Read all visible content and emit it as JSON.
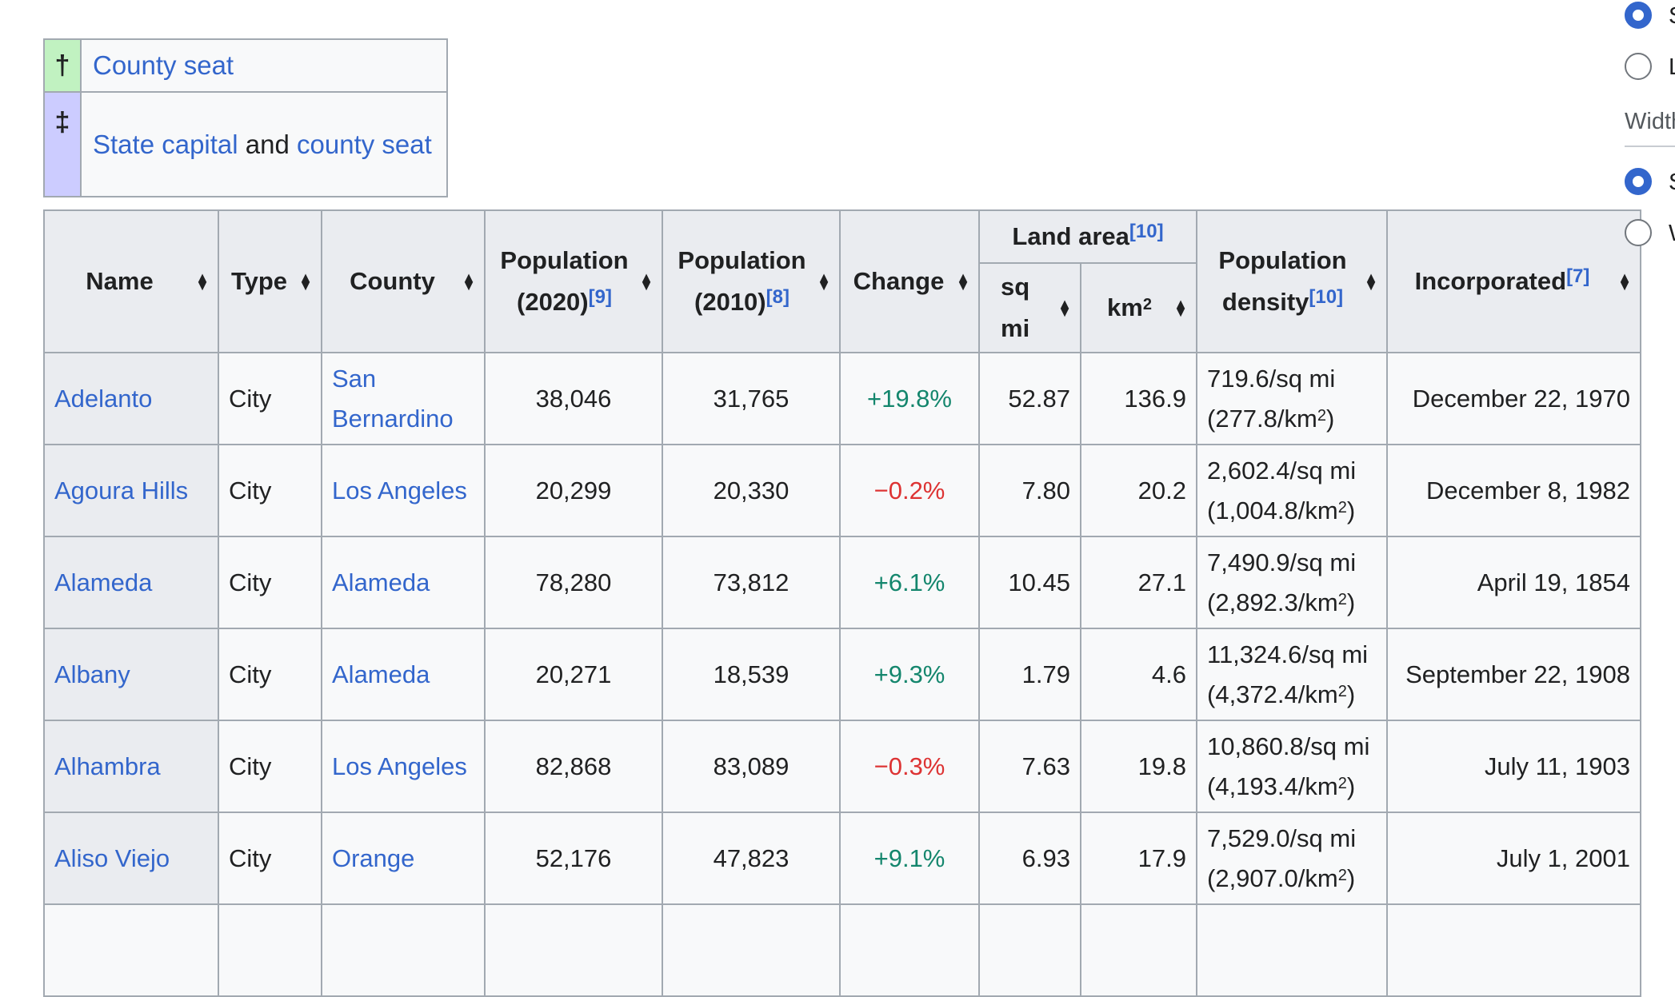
{
  "legend": [
    {
      "symbol": "†",
      "color": "#c1f2c1",
      "parts": [
        {
          "text": "County seat",
          "link": true
        }
      ]
    },
    {
      "symbol": "‡",
      "color": "#ccccff",
      "parts": [
        {
          "text": "State capital",
          "link": true
        },
        {
          "text": " and ",
          "link": false
        },
        {
          "text": "county seat",
          "link": true
        }
      ]
    }
  ],
  "table": {
    "headers": {
      "name": "Name",
      "type": "Type",
      "county": "County",
      "pop2020": {
        "line1": "Population",
        "line2": "(2020)",
        "ref": "[9]"
      },
      "pop2010": {
        "line1": "Population",
        "line2": "(2010)",
        "ref": "[8]"
      },
      "change": "Change",
      "land_area": {
        "label": "Land area",
        "ref": "[10]"
      },
      "sqmi": {
        "line1": "sq",
        "line2": "mi"
      },
      "km2": {
        "label": "km",
        "sup": "2"
      },
      "density": {
        "line1": "Population",
        "line2": "density",
        "ref": "[10]"
      },
      "incorporated": {
        "label": "Incorporated",
        "ref": "[7]"
      }
    },
    "rows": [
      {
        "name": "Adelanto",
        "type": "City",
        "county": [
          "San",
          "Bernardino"
        ],
        "pop2020": "38,046",
        "pop2010": "31,765",
        "change": "+19.8%",
        "change_sign": "pos",
        "sqmi": "52.87",
        "km2": "136.9",
        "density_sqmi": "719.6/sq mi",
        "density_km2": "(277.8/km",
        "incorporated": "December 22, 1970"
      },
      {
        "name": "Agoura Hills",
        "type": "City",
        "county": [
          "Los Angeles"
        ],
        "pop2020": "20,299",
        "pop2010": "20,330",
        "change": "−0.2%",
        "change_sign": "neg",
        "sqmi": "7.80",
        "km2": "20.2",
        "density_sqmi": "2,602.4/sq mi",
        "density_km2": "(1,004.8/km",
        "incorporated": "December 8, 1982"
      },
      {
        "name": "Alameda",
        "type": "City",
        "county": [
          "Alameda"
        ],
        "pop2020": "78,280",
        "pop2010": "73,812",
        "change": "+6.1%",
        "change_sign": "pos",
        "sqmi": "10.45",
        "km2": "27.1",
        "density_sqmi": "7,490.9/sq mi",
        "density_km2": "(2,892.3/km",
        "incorporated": "April 19, 1854"
      },
      {
        "name": "Albany",
        "type": "City",
        "county": [
          "Alameda"
        ],
        "pop2020": "20,271",
        "pop2010": "18,539",
        "change": "+9.3%",
        "change_sign": "pos",
        "sqmi": "1.79",
        "km2": "4.6",
        "density_sqmi": "11,324.6/sq mi",
        "density_km2": "(4,372.4/km",
        "incorporated": "September 22, 1908"
      },
      {
        "name": "Alhambra",
        "type": "City",
        "county": [
          "Los Angeles"
        ],
        "pop2020": "82,868",
        "pop2010": "83,089",
        "change": "−0.3%",
        "change_sign": "neg",
        "sqmi": "7.63",
        "km2": "19.8",
        "density_sqmi": "10,860.8/sq mi",
        "density_km2": "(4,193.4/km",
        "incorporated": "July 11, 1903"
      },
      {
        "name": "Aliso Viejo",
        "type": "City",
        "county": [
          "Orange"
        ],
        "pop2020": "52,176",
        "pop2010": "47,823",
        "change": "+9.1%",
        "change_sign": "pos",
        "sqmi": "6.93",
        "km2": "17.9",
        "density_sqmi": "7,529.0/sq mi",
        "density_km2": "(2,907.0/km",
        "incorporated": "July 1, 2001"
      }
    ],
    "km2_sup": "2",
    "density_close": ")"
  },
  "side_panel": {
    "option_1_initial": "S",
    "option_2_initial": "L",
    "width_label": "Width",
    "option_3_initial": "S",
    "option_4_initial": "W"
  },
  "colors": {
    "link": "#3366cc",
    "positive": "#14866d",
    "negative": "#d33",
    "header_bg": "#eaecf0",
    "cell_bg": "#f8f9fa"
  }
}
